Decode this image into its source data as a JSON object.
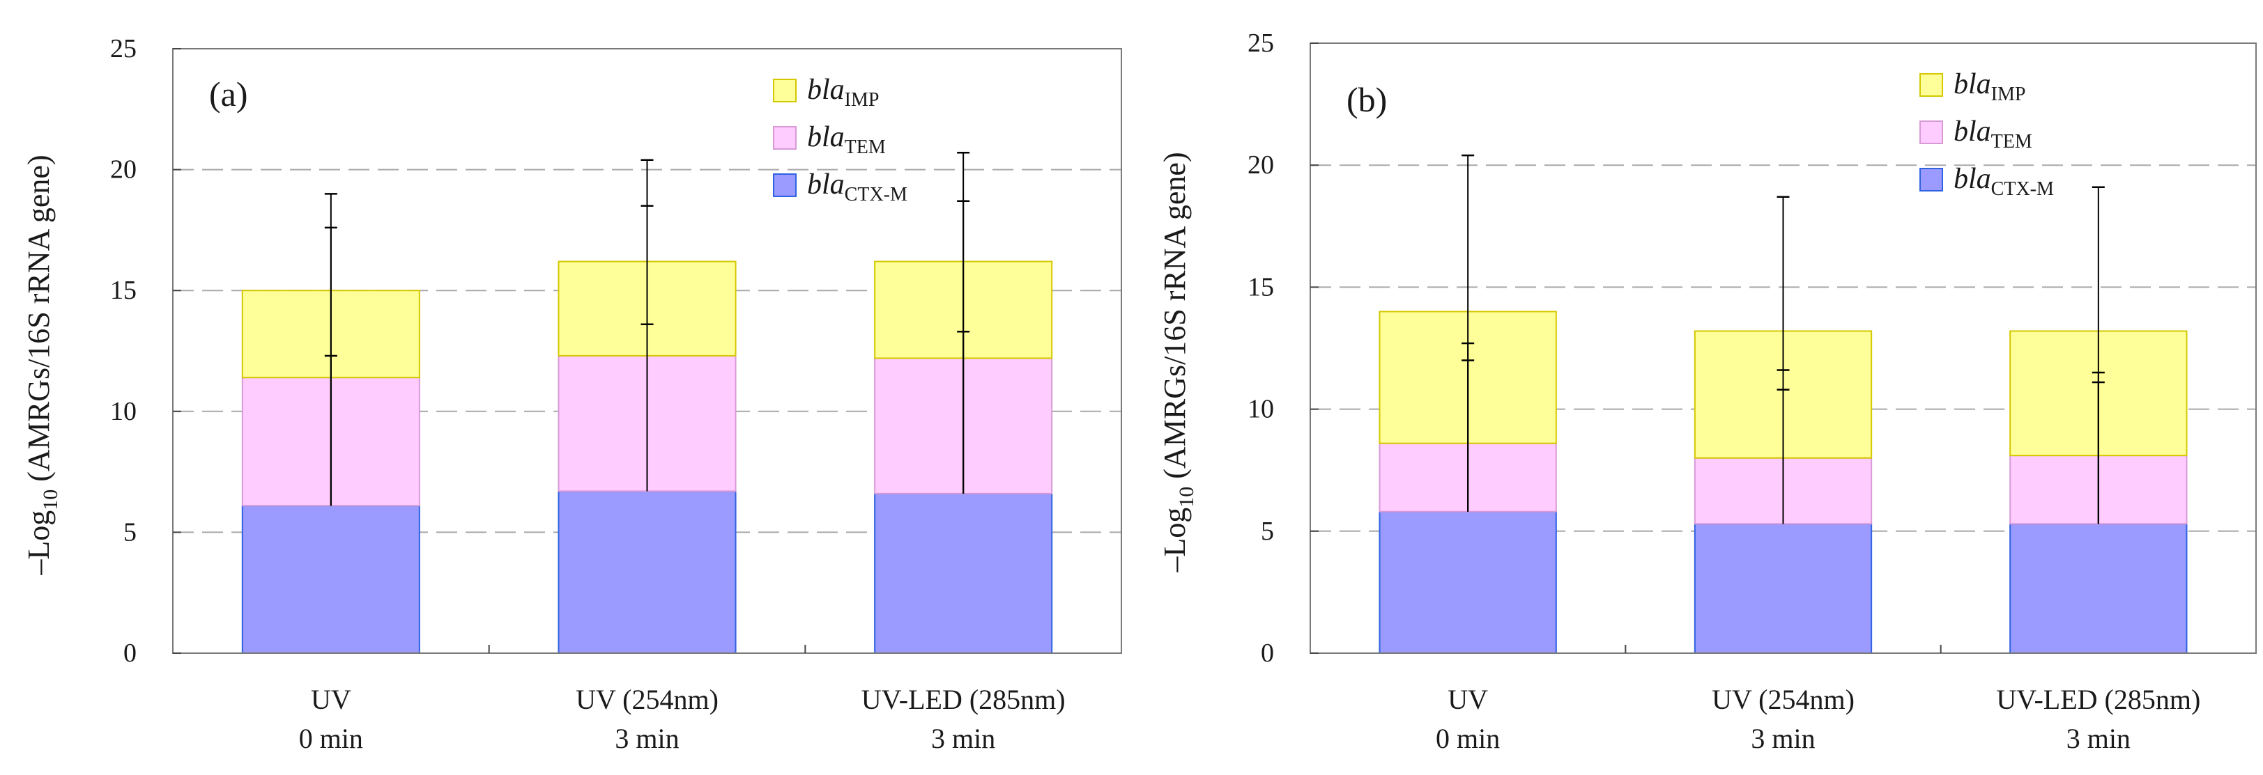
{
  "chart_data": [
    {
      "type": "bar",
      "stacked": true,
      "panel_label": "(a)",
      "ylabel": {
        "prefix": "–Log",
        "sub": "10",
        "rest": " (AMRGs/16S rRNA gene)"
      },
      "ylim": [
        0,
        25
      ],
      "yticks": [
        0,
        5,
        10,
        15,
        20,
        25
      ],
      "grid": "dashed horizontal",
      "legend_position": "top-right",
      "categories": [
        [
          "UV",
          "0 min"
        ],
        [
          "UV (254nm)",
          "3 min"
        ],
        [
          "UV-LED (285nm)",
          "3 min"
        ]
      ],
      "series": [
        {
          "name": "bla",
          "sub": "CTX-M",
          "values": [
            6.1,
            6.7,
            6.6
          ],
          "fill": "#9a9aff",
          "stroke": "#2f62e0",
          "errors": [
            [
              6.1,
              12.3
            ],
            [
              6.7,
              13.6
            ],
            [
              6.6,
              13.3
            ]
          ]
        },
        {
          "name": "bla",
          "sub": "TEM",
          "values": [
            5.3,
            5.6,
            5.6
          ],
          "fill": "#ffccff",
          "stroke": "#d79ad7",
          "errors": [
            [
              6.1,
              17.6
            ],
            [
              6.7,
              18.5
            ],
            [
              6.6,
              18.7
            ]
          ]
        },
        {
          "name": "bla",
          "sub": "IMP",
          "values": [
            3.6,
            3.9,
            4.0
          ],
          "fill": "#ffff99",
          "stroke": "#d4c800",
          "errors": [
            [
              6.1,
              19.0
            ],
            [
              6.7,
              20.4
            ],
            [
              6.6,
              20.7
            ]
          ]
        }
      ]
    },
    {
      "type": "bar",
      "stacked": true,
      "panel_label": "(b)",
      "ylabel": {
        "prefix": "–Log",
        "sub": "10",
        "rest": " (AMRGs/16S rRNA gene)"
      },
      "ylim": [
        0,
        25
      ],
      "yticks": [
        0,
        5,
        10,
        15,
        20,
        25
      ],
      "grid": "dashed horizontal",
      "legend_position": "top-right",
      "categories": [
        [
          "UV",
          "0 min"
        ],
        [
          "UV (254nm)",
          "3 min"
        ],
        [
          "UV-LED (285nm)",
          "3 min"
        ]
      ],
      "series": [
        {
          "name": "bla",
          "sub": "CTX-M",
          "values": [
            5.8,
            5.3,
            5.3
          ],
          "fill": "#9a9aff",
          "stroke": "#2f62e0",
          "errors": [
            [
              5.8,
              12.0
            ],
            [
              5.3,
              10.8
            ],
            [
              5.3,
              11.1
            ]
          ]
        },
        {
          "name": "bla",
          "sub": "TEM",
          "values": [
            2.8,
            2.7,
            2.8
          ],
          "fill": "#ffccff",
          "stroke": "#d79ad7",
          "errors": [
            [
              5.8,
              12.7
            ],
            [
              5.3,
              11.6
            ],
            [
              5.3,
              11.5
            ]
          ]
        },
        {
          "name": "bla",
          "sub": "IMP",
          "values": [
            5.4,
            5.2,
            5.1
          ],
          "fill": "#ffff99",
          "stroke": "#d4c800",
          "errors": [
            [
              5.8,
              20.4
            ],
            [
              5.3,
              18.7
            ],
            [
              5.3,
              19.1
            ]
          ]
        }
      ]
    }
  ]
}
